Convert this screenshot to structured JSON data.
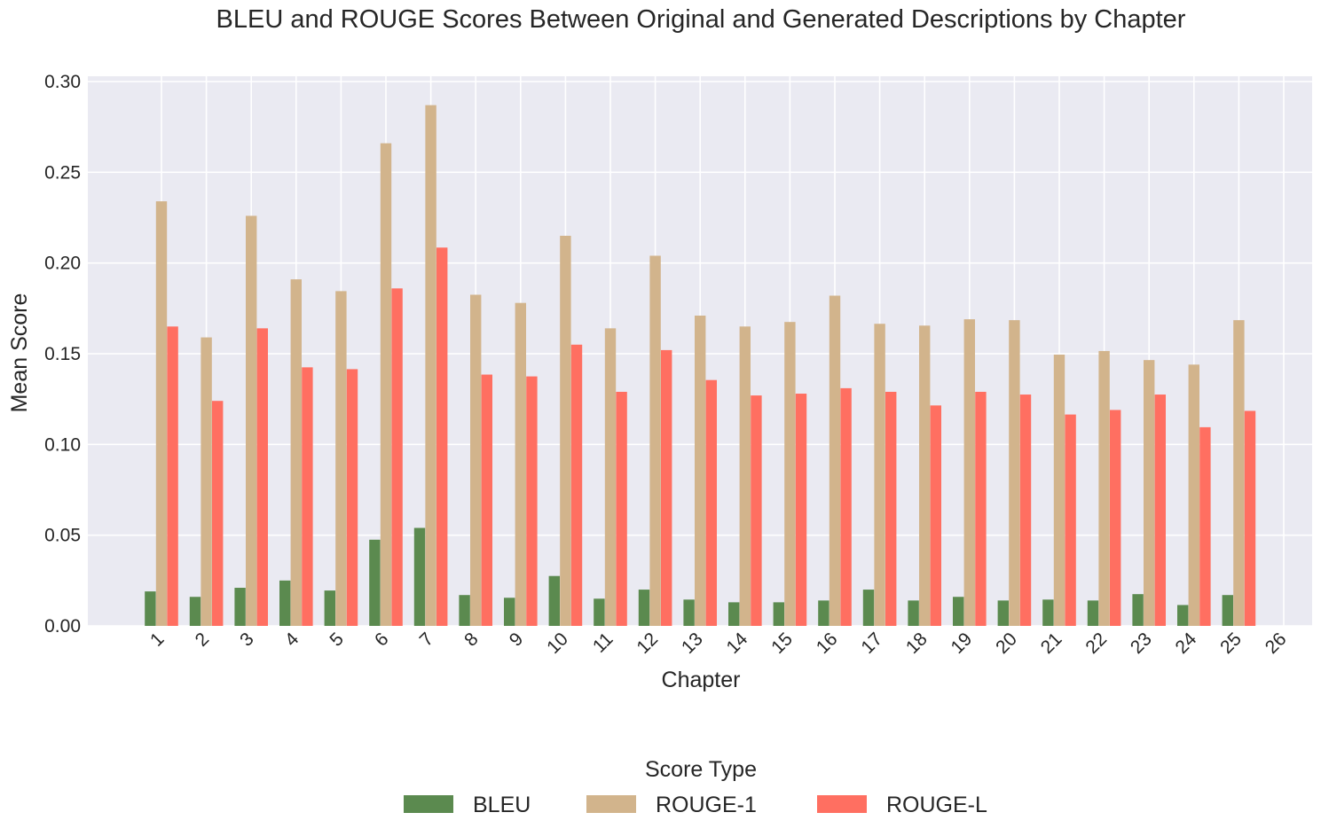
{
  "chart_data": {
    "type": "bar",
    "title": "BLEU and ROUGE Scores Between Original and Generated Descriptions by Chapter",
    "xlabel": "Chapter",
    "ylabel": "Mean Score",
    "ylim": [
      0,
      0.3
    ],
    "yticks": [
      "0.00",
      "0.05",
      "0.10",
      "0.15",
      "0.20",
      "0.25",
      "0.30"
    ],
    "grid": true,
    "legend_title": "Score Type",
    "legend_position": "bottom-center",
    "categories": [
      "1",
      "2",
      "3",
      "4",
      "5",
      "6",
      "7",
      "8",
      "9",
      "10",
      "11",
      "12",
      "13",
      "14",
      "15",
      "16",
      "17",
      "18",
      "19",
      "20",
      "21",
      "22",
      "23",
      "24",
      "25",
      "26"
    ],
    "series": [
      {
        "name": "BLEU",
        "color": "#5b8a4f",
        "values": [
          0.019,
          0.016,
          0.021,
          0.025,
          0.0195,
          0.0475,
          0.054,
          0.017,
          0.0155,
          0.0275,
          0.015,
          0.02,
          0.0145,
          0.013,
          0.013,
          0.014,
          0.02,
          0.014,
          0.016,
          0.014,
          0.0145,
          0.014,
          0.0175,
          0.0115,
          0.017,
          0
        ]
      },
      {
        "name": "ROUGE-1",
        "color": "#d2b48c",
        "values": [
          0.234,
          0.159,
          0.226,
          0.191,
          0.1845,
          0.266,
          0.287,
          0.1825,
          0.178,
          0.215,
          0.164,
          0.204,
          0.171,
          0.165,
          0.1675,
          0.182,
          0.1665,
          0.1655,
          0.169,
          0.1685,
          0.1495,
          0.1515,
          0.1465,
          0.144,
          0.1685,
          0
        ]
      },
      {
        "name": "ROUGE-L",
        "color": "#ff6f61",
        "values": [
          0.165,
          0.124,
          0.164,
          0.1425,
          0.1415,
          0.186,
          0.2085,
          0.1385,
          0.1375,
          0.155,
          0.129,
          0.152,
          0.1355,
          0.127,
          0.128,
          0.131,
          0.129,
          0.1215,
          0.129,
          0.1275,
          0.1165,
          0.119,
          0.1275,
          0.1095,
          0.1185,
          0
        ]
      }
    ]
  }
}
